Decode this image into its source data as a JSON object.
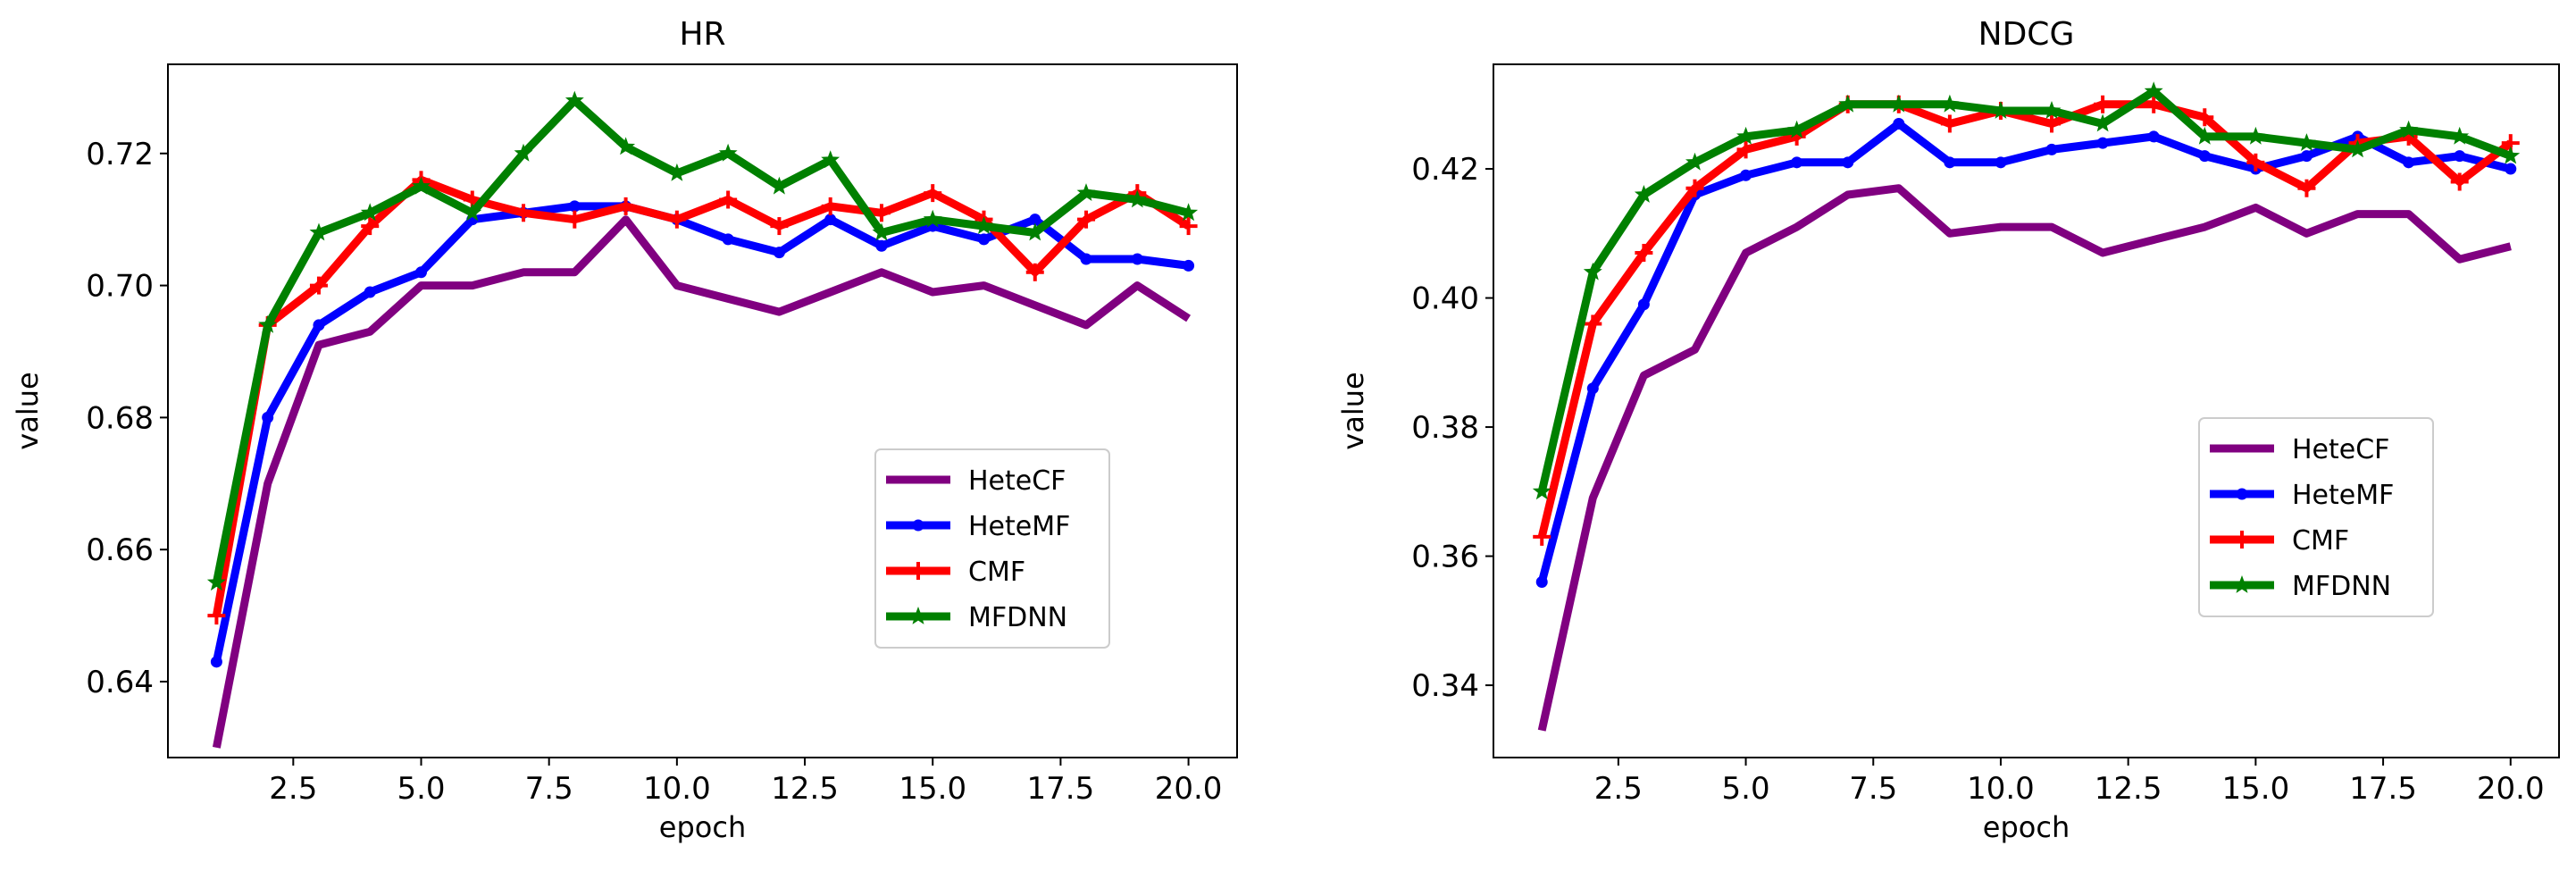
{
  "chart_data": [
    {
      "type": "line",
      "title": "HR",
      "xlabel": "epoch",
      "ylabel": "value",
      "xlim": [
        0.05,
        20.95
      ],
      "ylim": [
        0.6285,
        0.7335
      ],
      "xticks": [
        2.5,
        5.0,
        7.5,
        10.0,
        12.5,
        15.0,
        17.5,
        20.0
      ],
      "xtick_labels": [
        "2.5",
        "5.0",
        "7.5",
        "10.0",
        "12.5",
        "15.0",
        "17.5",
        "20.0"
      ],
      "yticks": [
        0.64,
        0.66,
        0.68,
        0.7,
        0.72
      ],
      "ytick_labels": [
        "0.64",
        "0.66",
        "0.68",
        "0.70",
        "0.72"
      ],
      "grid": false,
      "legend_position": "center-right",
      "x": [
        1,
        2,
        3,
        4,
        5,
        6,
        7,
        8,
        9,
        10,
        11,
        12,
        13,
        14,
        15,
        16,
        17,
        18,
        19,
        20
      ],
      "series": [
        {
          "name": "HeteCF",
          "color": "#800080",
          "marker": "none",
          "values": [
            0.63,
            0.67,
            0.691,
            0.693,
            0.7,
            0.7,
            0.702,
            0.702,
            0.71,
            0.7,
            0.698,
            0.696,
            0.699,
            0.702,
            0.699,
            0.7,
            0.697,
            0.694,
            0.7,
            0.695
          ]
        },
        {
          "name": "HeteMF",
          "color": "#0000ff",
          "marker": "dot",
          "values": [
            0.643,
            0.68,
            0.694,
            0.699,
            0.702,
            0.71,
            0.711,
            0.712,
            0.712,
            0.71,
            0.707,
            0.705,
            0.71,
            0.706,
            0.709,
            0.707,
            0.71,
            0.704,
            0.704,
            0.703
          ]
        },
        {
          "name": " CMF",
          "color": "#ff0000",
          "marker": "plus",
          "values": [
            0.65,
            0.694,
            0.7,
            0.709,
            0.716,
            0.713,
            0.711,
            0.71,
            0.712,
            0.71,
            0.713,
            0.709,
            0.712,
            0.711,
            0.714,
            0.71,
            0.702,
            0.71,
            0.714,
            0.709
          ]
        },
        {
          "name": "MFDNN",
          "color": "#008000",
          "marker": "star",
          "values": [
            0.655,
            0.694,
            0.708,
            0.711,
            0.715,
            0.711,
            0.72,
            0.728,
            0.721,
            0.717,
            0.72,
            0.715,
            0.719,
            0.708,
            0.71,
            0.709,
            0.708,
            0.714,
            0.713,
            0.711
          ]
        }
      ]
    },
    {
      "type": "line",
      "title": "NDCG",
      "xlabel": "epoch",
      "ylabel": "value",
      "xlim": [
        0.05,
        20.95
      ],
      "ylim": [
        0.3288,
        0.4362
      ],
      "xticks": [
        2.5,
        5.0,
        7.5,
        10.0,
        12.5,
        15.0,
        17.5,
        20.0
      ],
      "xtick_labels": [
        "2.5",
        "5.0",
        "7.5",
        "10.0",
        "12.5",
        "15.0",
        "17.5",
        "20.0"
      ],
      "yticks": [
        0.34,
        0.36,
        0.38,
        0.4,
        0.42
      ],
      "ytick_labels": [
        "0.34",
        "0.36",
        "0.38",
        "0.40",
        "0.42"
      ],
      "grid": false,
      "legend_position": "center-right",
      "x": [
        1,
        2,
        3,
        4,
        5,
        6,
        7,
        8,
        9,
        10,
        11,
        12,
        13,
        14,
        15,
        16,
        17,
        18,
        19,
        20
      ],
      "series": [
        {
          "name": "HeteCF",
          "color": "#800080",
          "marker": "none",
          "values": [
            0.333,
            0.369,
            0.388,
            0.392,
            0.407,
            0.411,
            0.416,
            0.417,
            0.41,
            0.411,
            0.411,
            0.407,
            0.409,
            0.411,
            0.414,
            0.41,
            0.413,
            0.413,
            0.406,
            0.408
          ]
        },
        {
          "name": "HeteMF",
          "color": "#0000ff",
          "marker": "dot",
          "values": [
            0.356,
            0.386,
            0.399,
            0.416,
            0.419,
            0.421,
            0.421,
            0.427,
            0.421,
            0.421,
            0.423,
            0.424,
            0.425,
            0.422,
            0.42,
            0.422,
            0.425,
            0.421,
            0.422,
            0.42
          ]
        },
        {
          "name": " CMF",
          "color": "#ff0000",
          "marker": "plus",
          "values": [
            0.363,
            0.396,
            0.407,
            0.417,
            0.423,
            0.425,
            0.43,
            0.43,
            0.427,
            0.429,
            0.427,
            0.43,
            0.43,
            0.428,
            0.421,
            0.417,
            0.424,
            0.425,
            0.418,
            0.424
          ]
        },
        {
          "name": "MFDNN",
          "color": "#008000",
          "marker": "star",
          "values": [
            0.37,
            0.404,
            0.416,
            0.421,
            0.425,
            0.426,
            0.43,
            0.43,
            0.43,
            0.429,
            0.429,
            0.427,
            0.432,
            0.425,
            0.425,
            0.424,
            0.423,
            0.426,
            0.425,
            0.422
          ]
        }
      ]
    }
  ]
}
